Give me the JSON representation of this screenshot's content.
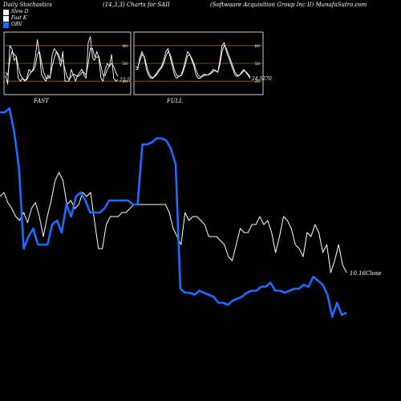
{
  "header": {
    "left": "Daily Stochastics",
    "center": "(14,3,3) Charts for SAII",
    "right": "(Softwaare Acquisition Group Inc II) MunafaSutra.com"
  },
  "legend": [
    {
      "label": "Slow D",
      "color": "#ffffff"
    },
    {
      "label": "Fast K",
      "color": "#ffffff"
    },
    {
      "label": "OBV",
      "color": "#1e6bff"
    }
  ],
  "chart_data": [
    {
      "type": "line",
      "name": "FAST",
      "ylim": [
        0,
        100
      ],
      "y_ticks": [
        "80",
        "50",
        "20"
      ],
      "gridlines": [
        80,
        50,
        20
      ],
      "last_value_label": "22.5",
      "series": [
        {
          "name": "Fast K",
          "values": [
            30,
            15,
            80,
            75,
            55,
            60,
            25,
            20,
            25,
            20,
            25,
            40,
            35,
            40,
            60,
            90,
            65,
            30,
            25,
            20,
            30,
            25,
            65,
            75,
            70,
            60,
            45,
            70,
            20,
            20,
            20,
            40,
            30,
            20,
            30,
            35,
            40,
            30,
            25,
            85,
            95,
            60,
            55,
            70,
            60,
            25,
            20,
            40,
            50,
            45,
            65,
            25,
            20,
            22.5
          ]
        },
        {
          "name": "Slow D",
          "values": [
            35,
            30,
            55,
            70,
            65,
            62,
            45,
            30,
            25,
            22,
            22,
            30,
            35,
            38,
            45,
            65,
            70,
            50,
            35,
            25,
            25,
            27,
            45,
            60,
            70,
            65,
            55,
            55,
            40,
            28,
            22,
            28,
            32,
            30,
            28,
            30,
            35,
            35,
            30,
            50,
            75,
            75,
            62,
            60,
            62,
            45,
            30,
            30,
            40,
            45,
            50,
            45,
            35,
            28
          ]
        }
      ]
    },
    {
      "type": "line",
      "name": "FULL",
      "ylim": [
        0,
        100
      ],
      "y_ticks": [
        "80",
        "50",
        "20"
      ],
      "gridlines": [
        80,
        50,
        20
      ],
      "last_value_label": "24.5270",
      "series": [
        {
          "name": "Fast K",
          "values": [
            40,
            40,
            60,
            70,
            60,
            40,
            30,
            25,
            25,
            30,
            35,
            40,
            45,
            55,
            70,
            75,
            60,
            45,
            30,
            25,
            28,
            30,
            40,
            55,
            70,
            65,
            55,
            45,
            30,
            25,
            25,
            30,
            32,
            30,
            32,
            35,
            40,
            38,
            35,
            55,
            80,
            85,
            70,
            60,
            50,
            40,
            30,
            28,
            30,
            35,
            40,
            35,
            30,
            24.5
          ]
        },
        {
          "name": "Slow D",
          "values": [
            45,
            42,
            55,
            65,
            62,
            48,
            35,
            28,
            26,
            28,
            32,
            38,
            42,
            50,
            62,
            70,
            65,
            52,
            38,
            30,
            28,
            29,
            36,
            48,
            62,
            65,
            58,
            50,
            38,
            30,
            27,
            28,
            30,
            30,
            31,
            33,
            37,
            37,
            35,
            48,
            70,
            80,
            75,
            65,
            55,
            45,
            35,
            30,
            30,
            33,
            37,
            36,
            32,
            27
          ]
        }
      ]
    },
    {
      "type": "line",
      "name": "main",
      "ylim": [
        0,
        100
      ],
      "last_value_label": "10.16Close",
      "series": [
        {
          "name": "Slow D",
          "values": [
            58,
            60,
            55,
            52,
            48,
            46,
            50,
            45,
            52,
            55,
            48,
            38,
            48,
            56,
            66,
            70,
            66,
            54,
            56,
            52,
            54,
            60,
            58,
            60,
            46,
            32,
            32,
            44,
            48,
            48,
            48,
            50,
            50,
            52,
            54,
            54,
            54,
            54,
            54,
            54,
            54,
            54,
            54,
            50,
            42,
            38,
            34,
            50,
            46,
            48,
            48,
            46,
            44,
            38,
            38,
            38,
            36,
            34,
            28,
            26,
            34,
            42,
            40,
            40,
            44,
            44,
            48,
            44,
            46,
            40,
            30,
            38,
            48,
            46,
            42,
            34,
            32,
            28,
            40,
            38,
            44,
            40,
            30,
            34,
            20,
            26,
            34,
            24,
            20
          ]
        },
        {
          "name": "OBV",
          "values": [
            100,
            100,
            102,
            90,
            72,
            32,
            38,
            42,
            34,
            34,
            34,
            44,
            46,
            40,
            54,
            48,
            58,
            60,
            56,
            50,
            50,
            50,
            52,
            56,
            56,
            56,
            56,
            56,
            54,
            54,
            84,
            84,
            85,
            87,
            87,
            86,
            82,
            74,
            12,
            10,
            10,
            9,
            11,
            10,
            9,
            8,
            5,
            5,
            4,
            6,
            7,
            8,
            10,
            11,
            11,
            13,
            13,
            15,
            11,
            11,
            10,
            11,
            12,
            12,
            14,
            13,
            18,
            16,
            14,
            9,
            -2,
            5,
            -1,
            0
          ]
        }
      ]
    }
  ]
}
